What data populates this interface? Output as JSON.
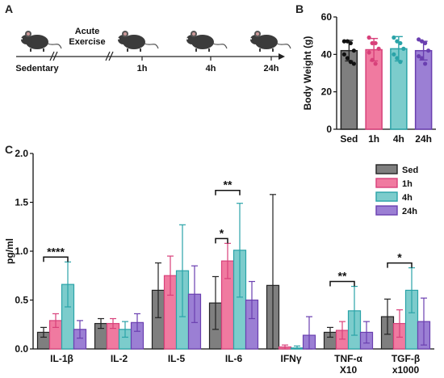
{
  "panel_letters": {
    "a": "A",
    "b": "B",
    "c": "C"
  },
  "timeline": {
    "labels": [
      "Sedentary",
      "Acute",
      "Exercise",
      "1h",
      "4h",
      "24h"
    ]
  },
  "icons": [
    "mouse-icon",
    "mouse-icon",
    "mouse-icon",
    "mouse-icon"
  ],
  "colors": {
    "sed": "#7f7f7f",
    "h1": "#f07aa0",
    "h4": "#7ccccc",
    "h24": "#9b7fd4",
    "sed_edge": "#222222",
    "h1_edge": "#d8407a",
    "h4_edge": "#2aa3a8",
    "h24_edge": "#6a3fb0"
  },
  "chart_data": [
    {
      "type": "bar",
      "panel": "B",
      "ylabel": "Body Weight (g)",
      "ylim": [
        0,
        60
      ],
      "yticks": [
        "0",
        "20",
        "40",
        "60"
      ],
      "categories": [
        "Sed",
        "1h",
        "4h",
        "24h"
      ],
      "values": [
        42,
        42.5,
        43,
        42
      ],
      "errors": [
        5.5,
        6,
        6.5,
        5
      ],
      "points": [
        [
          47,
          47,
          46,
          42,
          40,
          38,
          36,
          35
        ],
        [
          49,
          46,
          46,
          43,
          41,
          37,
          35
        ],
        [
          49,
          47,
          46,
          43,
          40,
          38,
          36
        ],
        [
          48,
          47,
          46,
          42,
          39,
          38,
          35
        ]
      ]
    },
    {
      "type": "bar",
      "panel": "C",
      "ylabel": "pg/ml",
      "ylim": [
        0,
        2.0
      ],
      "yticks": [
        "0.0",
        "0.5",
        "1.0",
        "1.5",
        "2.0"
      ],
      "categories": [
        "IL-1β",
        "IL-2",
        "IL-5",
        "IL-6",
        "IFNγ",
        "TNF-α",
        "TGF-β"
      ],
      "category_sublabels": [
        "",
        "",
        "",
        "",
        "",
        "X10",
        "x1000"
      ],
      "series": [
        {
          "name": "Sed",
          "values": [
            0.17,
            0.26,
            0.6,
            0.47,
            0.65,
            0.17,
            0.33
          ],
          "errors": [
            0.05,
            0.05,
            0.28,
            0.27,
            0.93,
            0.05,
            0.18
          ]
        },
        {
          "name": "1h",
          "values": [
            0.29,
            0.26,
            0.75,
            0.9,
            0.02,
            0.19,
            0.26
          ],
          "errors": [
            0.07,
            0.05,
            0.2,
            0.18,
            0.02,
            0.09,
            0.14
          ]
        },
        {
          "name": "4h",
          "values": [
            0.66,
            0.2,
            0.8,
            1.01,
            0.01,
            0.39,
            0.6
          ],
          "errors": [
            0.23,
            0.08,
            0.47,
            0.48,
            0.02,
            0.25,
            0.23
          ]
        },
        {
          "name": "24h",
          "values": [
            0.2,
            0.27,
            0.56,
            0.5,
            0.14,
            0.17,
            0.28
          ],
          "errors": [
            0.09,
            0.09,
            0.29,
            0.19,
            0.19,
            0.11,
            0.24
          ]
        }
      ],
      "legend_position": "top-right",
      "significance": [
        {
          "category": "IL-1β",
          "from": "Sed",
          "to": "4h",
          "label": "****"
        },
        {
          "category": "IL-6",
          "from": "Sed",
          "to": "1h",
          "label": "*"
        },
        {
          "category": "IL-6",
          "from": "Sed",
          "to": "4h",
          "label": "**"
        },
        {
          "category": "TNF-α",
          "from": "Sed",
          "to": "4h",
          "label": "**"
        },
        {
          "category": "TGF-β",
          "from": "Sed",
          "to": "4h",
          "label": "*"
        }
      ]
    }
  ]
}
